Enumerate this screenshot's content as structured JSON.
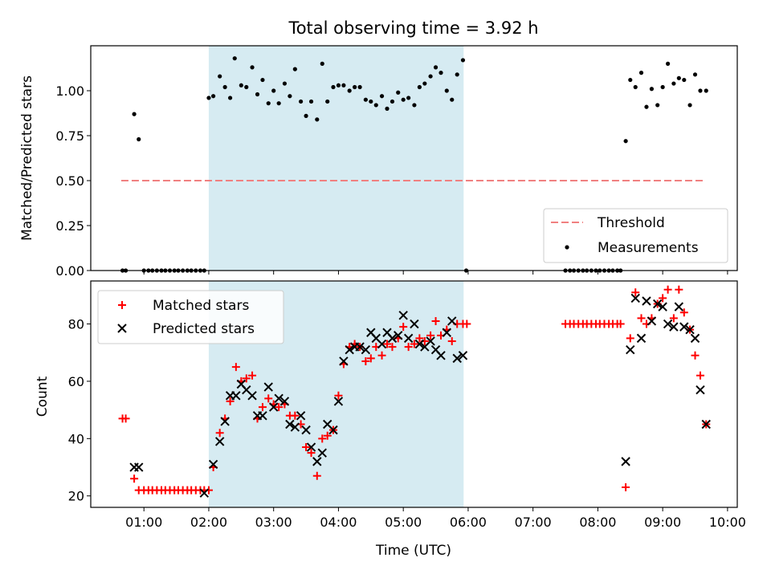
{
  "title": "Total observing time = 3.92 h",
  "chart_data": [
    {
      "type": "scatter",
      "panel": "top",
      "ylabel": "Matched/Predicted stars",
      "ylim": [
        0,
        1.25
      ],
      "yticks": [
        0,
        0.25,
        0.5,
        0.75,
        1.0
      ],
      "ytick_labels": [
        "0.00",
        "0.25",
        "0.50",
        "0.75",
        "1.00"
      ],
      "xlim": [
        0.18,
        10.15
      ],
      "shaded_region": [
        2.0,
        5.93
      ],
      "shade_color": "#add8e6",
      "legend_position": "lower-right",
      "threshold": {
        "name": "Threshold",
        "value": 0.5,
        "x_range": [
          0.65,
          9.65
        ],
        "color": "#f08080",
        "style": "dashed"
      },
      "series": [
        {
          "name": "Measurements",
          "color": "#000000",
          "marker": "dot",
          "x": [
            0.67,
            0.72,
            0.85,
            0.92,
            1.0,
            1.07,
            1.13,
            1.2,
            1.27,
            1.33,
            1.4,
            1.47,
            1.53,
            1.6,
            1.67,
            1.73,
            1.8,
            1.87,
            1.93,
            2.0,
            2.07,
            2.17,
            2.25,
            2.33,
            2.4,
            2.5,
            2.58,
            2.67,
            2.75,
            2.83,
            2.92,
            3.0,
            3.08,
            3.17,
            3.25,
            3.33,
            3.42,
            3.5,
            3.58,
            3.67,
            3.75,
            3.83,
            3.92,
            4.0,
            4.08,
            4.17,
            4.25,
            4.33,
            4.42,
            4.5,
            4.58,
            4.67,
            4.75,
            4.83,
            4.92,
            5.0,
            5.08,
            5.17,
            5.25,
            5.33,
            5.42,
            5.5,
            5.58,
            5.67,
            5.75,
            5.83,
            5.92,
            5.97,
            7.5,
            7.57,
            7.63,
            7.7,
            7.77,
            7.83,
            7.9,
            7.97,
            8.03,
            8.1,
            8.17,
            8.23,
            8.3,
            8.35,
            8.43,
            8.5,
            8.58,
            8.67,
            8.75,
            8.83,
            8.92,
            9.0,
            9.08,
            9.17,
            9.25,
            9.33,
            9.42,
            9.5,
            9.58,
            9.67
          ],
          "y": [
            0,
            0,
            0.87,
            0.73,
            0,
            0,
            0,
            0,
            0,
            0,
            0,
            0,
            0,
            0,
            0,
            0,
            0,
            0,
            0,
            0.96,
            0.97,
            1.08,
            1.02,
            0.96,
            1.18,
            1.03,
            1.02,
            1.13,
            0.98,
            1.06,
            0.93,
            1.0,
            0.93,
            1.04,
            0.97,
            1.12,
            0.94,
            0.86,
            0.94,
            0.84,
            1.15,
            0.94,
            1.02,
            1.03,
            1.03,
            1.0,
            1.02,
            1.02,
            0.95,
            0.94,
            0.92,
            0.97,
            0.9,
            0.94,
            0.99,
            0.95,
            0.96,
            0.92,
            1.02,
            1.04,
            1.08,
            1.13,
            1.1,
            1.0,
            0.95,
            1.09,
            1.17,
            0,
            0,
            0,
            0,
            0,
            0,
            0,
            0,
            0,
            0,
            0,
            0,
            0,
            0,
            0,
            0.72,
            1.06,
            1.02,
            1.1,
            0.91,
            1.01,
            0.92,
            1.02,
            1.15,
            1.04,
            1.07,
            1.06,
            0.92,
            1.09,
            1.0,
            1.0
          ]
        }
      ]
    },
    {
      "type": "scatter",
      "panel": "bottom",
      "xlabel": "Time (UTC)",
      "ylabel": "Count",
      "xlim": [
        0.18,
        10.15
      ],
      "ylim": [
        16,
        95
      ],
      "xticks": [
        1,
        2,
        3,
        4,
        5,
        6,
        7,
        8,
        9,
        10
      ],
      "xtick_labels": [
        "01:00",
        "02:00",
        "03:00",
        "04:00",
        "05:00",
        "06:00",
        "07:00",
        "08:00",
        "09:00",
        "10:00"
      ],
      "yticks": [
        20,
        40,
        60,
        80
      ],
      "ytick_labels": [
        "20",
        "40",
        "60",
        "80"
      ],
      "shaded_region": [
        2.0,
        5.93
      ],
      "shade_color": "#add8e6",
      "legend_position": "upper-left",
      "series": [
        {
          "name": "Matched stars",
          "color": "#ff0000",
          "marker": "plus",
          "x": [
            0.67,
            0.72,
            0.85,
            0.92,
            1.0,
            1.07,
            1.13,
            1.2,
            1.27,
            1.33,
            1.4,
            1.47,
            1.53,
            1.6,
            1.67,
            1.73,
            1.8,
            1.87,
            1.93,
            2.0,
            2.07,
            2.17,
            2.25,
            2.33,
            2.42,
            2.5,
            2.58,
            2.67,
            2.75,
            2.83,
            2.92,
            3.0,
            3.08,
            3.17,
            3.25,
            3.33,
            3.42,
            3.5,
            3.58,
            3.67,
            3.75,
            3.83,
            3.92,
            4.0,
            4.08,
            4.17,
            4.25,
            4.33,
            4.42,
            4.5,
            4.58,
            4.67,
            4.75,
            4.83,
            4.92,
            5.0,
            5.08,
            5.17,
            5.25,
            5.33,
            5.42,
            5.5,
            5.58,
            5.67,
            5.75,
            5.83,
            5.92,
            5.98,
            7.5,
            7.57,
            7.63,
            7.7,
            7.77,
            7.83,
            7.9,
            7.97,
            8.03,
            8.1,
            8.17,
            8.23,
            8.3,
            8.35,
            8.43,
            8.5,
            8.58,
            8.67,
            8.75,
            8.83,
            8.92,
            9.0,
            9.08,
            9.17,
            9.25,
            9.33,
            9.42,
            9.5,
            9.58,
            9.67
          ],
          "y": [
            47,
            47,
            26,
            22,
            22,
            22,
            22,
            22,
            22,
            22,
            22,
            22,
            22,
            22,
            22,
            22,
            22,
            22,
            22,
            22,
            30,
            42,
            47,
            53,
            65,
            60,
            61,
            62,
            47,
            51,
            54,
            52,
            51,
            52,
            48,
            48,
            45,
            37,
            35,
            27,
            40,
            41,
            43,
            55,
            66,
            72,
            73,
            72,
            67,
            68,
            72,
            69,
            73,
            72,
            75,
            79,
            72,
            73,
            75,
            74,
            76,
            81,
            76,
            78,
            74,
            80,
            80,
            80,
            80,
            80,
            80,
            80,
            80,
            80,
            80,
            80,
            80,
            80,
            80,
            80,
            80,
            80,
            23,
            75,
            91,
            82,
            80,
            82,
            87,
            89,
            92,
            82,
            92,
            84,
            78,
            69,
            62,
            45
          ]
        },
        {
          "name": "Predicted stars",
          "color": "#000000",
          "marker": "x",
          "x": [
            0.85,
            0.92,
            1.93,
            2.07,
            2.17,
            2.25,
            2.33,
            2.42,
            2.5,
            2.58,
            2.67,
            2.75,
            2.83,
            2.92,
            3.0,
            3.08,
            3.17,
            3.25,
            3.33,
            3.42,
            3.5,
            3.58,
            3.67,
            3.75,
            3.83,
            3.92,
            4.0,
            4.08,
            4.17,
            4.25,
            4.33,
            4.42,
            4.5,
            4.58,
            4.67,
            4.75,
            4.83,
            4.92,
            5.0,
            5.08,
            5.17,
            5.25,
            5.33,
            5.42,
            5.5,
            5.58,
            5.67,
            5.75,
            5.83,
            5.92,
            8.43,
            8.5,
            8.58,
            8.67,
            8.75,
            8.83,
            8.92,
            9.0,
            9.08,
            9.17,
            9.25,
            9.33,
            9.42,
            9.5,
            9.58,
            9.67
          ],
          "y": [
            30,
            30,
            21,
            31,
            39,
            46,
            55,
            55,
            59,
            57,
            55,
            48,
            48,
            58,
            51,
            54,
            53,
            45,
            44,
            48,
            43,
            37,
            32,
            35,
            45,
            43,
            53,
            67,
            71,
            72,
            72,
            71,
            77,
            75,
            73,
            77,
            75,
            76,
            83,
            75,
            80,
            73,
            72,
            74,
            71,
            69,
            77,
            81,
            68,
            69,
            32,
            71,
            89,
            75,
            88,
            81,
            87,
            86,
            80,
            79,
            86,
            79,
            78,
            75,
            57,
            45
          ]
        }
      ]
    }
  ]
}
